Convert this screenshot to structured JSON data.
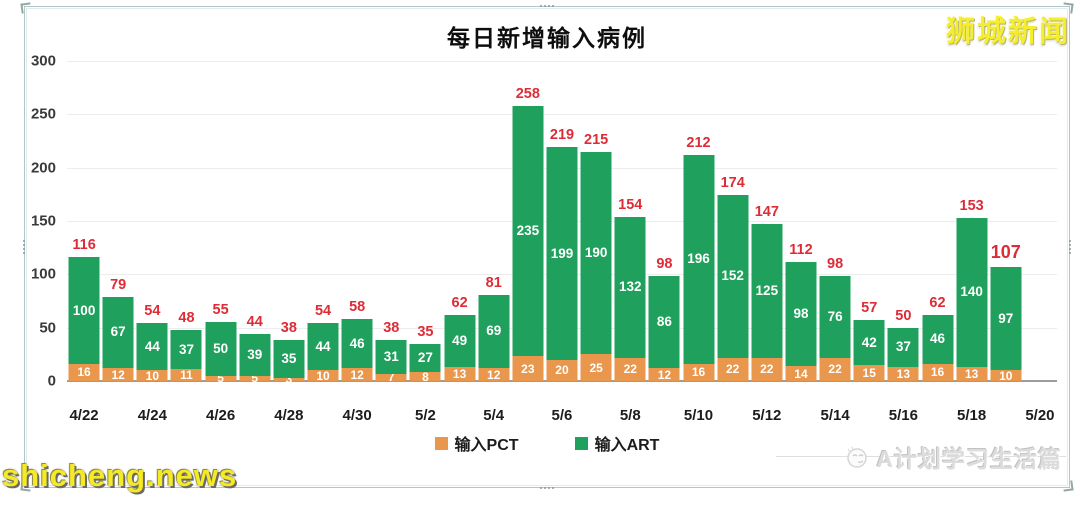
{
  "watermarks": {
    "top_right": "狮城新闻",
    "bottom_left": "shicheng.news",
    "bottom_right": "A计划学习生活篇"
  },
  "chart_data": {
    "type": "bar",
    "stacked": true,
    "title": "每日新增输入病例",
    "categories": [
      "4/22",
      "4/23",
      "4/24",
      "4/25",
      "4/26",
      "4/27",
      "4/28",
      "4/29",
      "4/30",
      "5/1",
      "5/2",
      "5/3",
      "5/4",
      "5/5",
      "5/6",
      "5/7",
      "5/8",
      "5/9",
      "5/10",
      "5/11",
      "5/12",
      "5/13",
      "5/14",
      "5/15",
      "5/16",
      "5/17",
      "5/18",
      "5/19"
    ],
    "x_tick_labels": [
      "4/22",
      "4/24",
      "4/26",
      "4/28",
      "4/30",
      "5/2",
      "5/4",
      "5/6",
      "5/8",
      "5/10",
      "5/12",
      "5/14",
      "5/16",
      "5/18",
      "5/20"
    ],
    "series": [
      {
        "name": "输入PCT",
        "color": "#E8974C",
        "values": [
          16,
          12,
          10,
          11,
          5,
          5,
          3,
          10,
          12,
          7,
          8,
          13,
          12,
          23,
          20,
          25,
          22,
          12,
          16,
          22,
          22,
          14,
          22,
          15,
          13,
          16,
          13,
          10
        ]
      },
      {
        "name": "输入ART",
        "color": "#1FA05C",
        "values": [
          100,
          67,
          44,
          37,
          50,
          39,
          35,
          44,
          46,
          31,
          27,
          49,
          69,
          235,
          199,
          190,
          132,
          86,
          196,
          152,
          125,
          98,
          76,
          42,
          37,
          46,
          140,
          97
        ]
      }
    ],
    "totals": [
      116,
      79,
      54,
      48,
      55,
      44,
      38,
      54,
      58,
      38,
      35,
      62,
      81,
      258,
      219,
      215,
      154,
      98,
      212,
      174,
      147,
      112,
      98,
      57,
      50,
      62,
      153,
      107
    ],
    "total_label_color": "#DE2C36",
    "emphasized_last_total": true,
    "ylim": [
      0,
      300
    ],
    "yticks": [
      0,
      50,
      100,
      150,
      200,
      250,
      300
    ],
    "grid": true,
    "legend_position": "bottom",
    "legend": [
      {
        "label": "输入PCT",
        "color": "#E8974C"
      },
      {
        "label": "输入ART",
        "color": "#1FA05C"
      }
    ]
  }
}
